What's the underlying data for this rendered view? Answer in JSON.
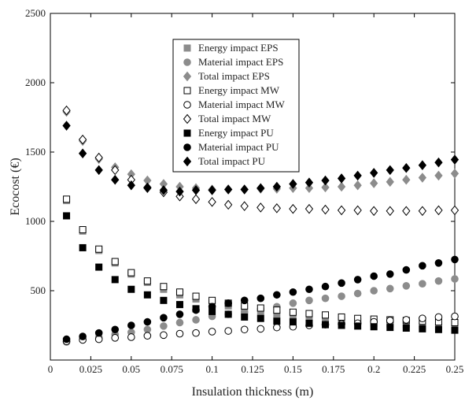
{
  "chart_data": {
    "type": "scatter",
    "xlabel": "Insulation thickness (m)",
    "ylabel": "Ecocost (€)",
    "xlim": [
      0,
      0.25
    ],
    "ylim": [
      0,
      2500
    ],
    "xticks": [
      0,
      0.025,
      0.05,
      0.075,
      0.1,
      0.125,
      0.15,
      0.175,
      0.2,
      0.225,
      0.25
    ],
    "xtick_labels": [
      "0",
      "0.025",
      "0.05",
      "0.075",
      "0.1",
      "0.125",
      "0.15",
      "0.175",
      "0.2",
      "0.225",
      "0.25"
    ],
    "yticks": [
      500,
      1000,
      1500,
      2000,
      2500
    ],
    "ytick_labels": [
      "500",
      "1000",
      "1500",
      "2000",
      "2500"
    ],
    "grid": false,
    "legend_position": "top-center",
    "x": [
      0.01,
      0.02,
      0.03,
      0.04,
      0.05,
      0.06,
      0.07,
      0.08,
      0.09,
      0.1,
      0.11,
      0.12,
      0.13,
      0.14,
      0.15,
      0.16,
      0.17,
      0.18,
      0.19,
      0.2,
      0.21,
      0.22,
      0.23,
      0.24,
      0.25
    ],
    "series": [
      {
        "name": "Energy impact EPS",
        "marker": "square",
        "fill": "#8c8c8c",
        "stroke": "#8c8c8c",
        "values": [
          1150,
          930,
          790,
          700,
          620,
          560,
          510,
          470,
          440,
          410,
          390,
          370,
          350,
          330,
          320,
          310,
          295,
          285,
          275,
          265,
          260,
          255,
          245,
          240,
          235
        ]
      },
      {
        "name": "Material impact EPS",
        "marker": "circle",
        "fill": "#8c8c8c",
        "stroke": "#8c8c8c",
        "values": [
          130,
          150,
          165,
          185,
          200,
          220,
          245,
          270,
          290,
          315,
          330,
          345,
          365,
          385,
          410,
          430,
          445,
          460,
          480,
          500,
          515,
          535,
          550,
          570,
          585
        ]
      },
      {
        "name": "Total impact EPS",
        "marker": "diamond",
        "fill": "#8c8c8c",
        "stroke": "#8c8c8c",
        "values": [
          1790,
          1580,
          1450,
          1390,
          1340,
          1295,
          1270,
          1250,
          1240,
          1230,
          1230,
          1230,
          1235,
          1235,
          1240,
          1240,
          1245,
          1250,
          1260,
          1275,
          1285,
          1300,
          1315,
          1330,
          1345
        ]
      },
      {
        "name": "Energy impact MW",
        "marker": "square",
        "fill": "#ffffff",
        "stroke": "#000000",
        "values": [
          1160,
          940,
          800,
          710,
          630,
          570,
          530,
          490,
          460,
          430,
          410,
          390,
          375,
          360,
          345,
          335,
          325,
          310,
          300,
          295,
          290,
          285,
          280,
          275,
          270
        ]
      },
      {
        "name": "Material impact MW",
        "marker": "circle",
        "fill": "#ffffff",
        "stroke": "#000000",
        "values": [
          135,
          145,
          150,
          160,
          165,
          175,
          180,
          190,
          195,
          205,
          210,
          220,
          225,
          235,
          240,
          250,
          255,
          260,
          265,
          275,
          285,
          290,
          300,
          310,
          315
        ]
      },
      {
        "name": "Total impact MW",
        "marker": "diamond",
        "fill": "#ffffff",
        "stroke": "#000000",
        "values": [
          1800,
          1590,
          1460,
          1370,
          1300,
          1245,
          1210,
          1180,
          1160,
          1140,
          1120,
          1110,
          1100,
          1095,
          1090,
          1090,
          1085,
          1080,
          1080,
          1075,
          1075,
          1075,
          1075,
          1080,
          1080
        ]
      },
      {
        "name": "Energy impact PU",
        "marker": "square",
        "fill": "#000000",
        "stroke": "#000000",
        "values": [
          1040,
          810,
          670,
          580,
          510,
          470,
          430,
          400,
          370,
          350,
          330,
          310,
          300,
          280,
          275,
          265,
          255,
          250,
          245,
          240,
          235,
          230,
          225,
          220,
          215
        ]
      },
      {
        "name": "Material impact PU",
        "marker": "circle",
        "fill": "#000000",
        "stroke": "#000000",
        "values": [
          150,
          170,
          195,
          220,
          250,
          275,
          305,
          330,
          360,
          385,
          410,
          430,
          445,
          470,
          490,
          510,
          530,
          555,
          580,
          605,
          620,
          650,
          680,
          700,
          725
        ]
      },
      {
        "name": "Total impact PU",
        "marker": "diamond",
        "fill": "#000000",
        "stroke": "#000000",
        "values": [
          1690,
          1490,
          1370,
          1300,
          1260,
          1240,
          1225,
          1215,
          1225,
          1225,
          1230,
          1230,
          1240,
          1250,
          1270,
          1280,
          1295,
          1310,
          1330,
          1350,
          1370,
          1385,
          1405,
          1425,
          1445
        ]
      }
    ]
  }
}
